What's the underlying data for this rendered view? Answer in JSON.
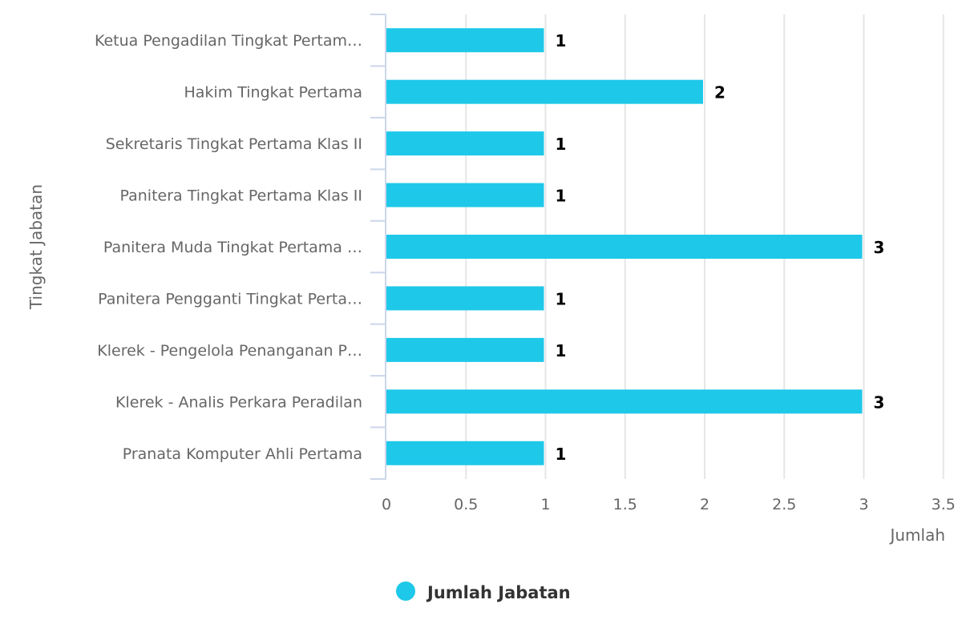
{
  "chart_data": {
    "type": "bar",
    "orientation": "horizontal",
    "categories": [
      "Ketua Pengadilan Tingkat Pertam…",
      "Hakim Tingkat Pertama",
      "Sekretaris Tingkat Pertama Klas II",
      "Panitera Tingkat Pertama Klas II",
      "Panitera Muda Tingkat Pertama …",
      "Panitera Pengganti Tingkat Perta…",
      "Klerek - Pengelola Penanganan P…",
      "Klerek - Analis Perkara Peradilan",
      "Pranata Komputer Ahli Pertama"
    ],
    "series": [
      {
        "name": "Jumlah Jabatan",
        "values": [
          1,
          2,
          1,
          1,
          3,
          1,
          1,
          3,
          1
        ],
        "color": "#1ec8e9"
      }
    ],
    "xlabel": "Jumlah",
    "ylabel": "Tingkat Jabatan",
    "xlim": [
      0,
      3.5
    ],
    "x_ticks": [
      "0",
      "0.5",
      "1",
      "1.5",
      "2",
      "2.5",
      "3",
      "3.5"
    ],
    "grid": true,
    "data_labels": true,
    "legend": "bottom-center"
  }
}
